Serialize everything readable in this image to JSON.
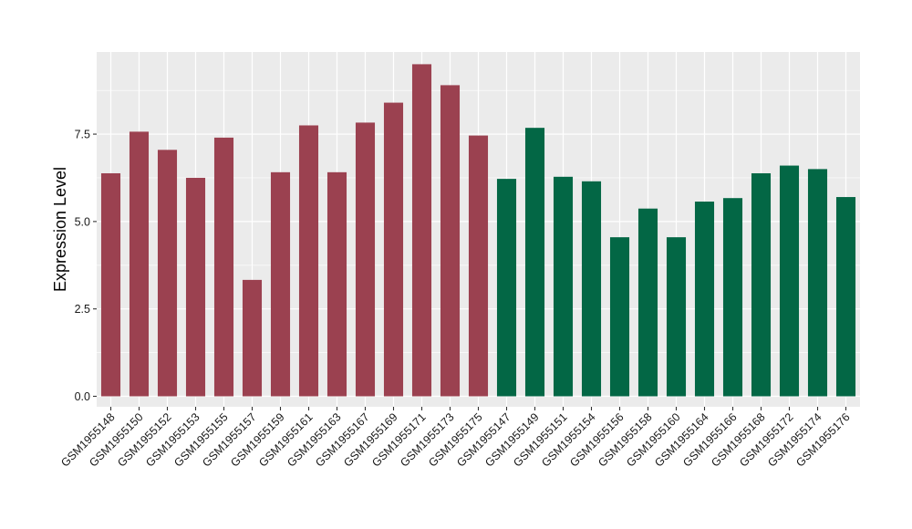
{
  "chart_data": {
    "type": "bar",
    "title": "",
    "xlabel": "",
    "ylabel": "Expression Level",
    "ylim": [
      -0.3,
      9.85
    ],
    "yticks": [
      0.0,
      2.5,
      5.0,
      7.5
    ],
    "ytick_labels": [
      "0.0",
      "2.5",
      "5.0",
      "7.5"
    ],
    "grid": true,
    "panel_background": "#ebebeb",
    "grid_color": "#ffffff",
    "categories": [
      "GSM1955148",
      "GSM1955150",
      "GSM1955152",
      "GSM1955153",
      "GSM1955155",
      "GSM1955157",
      "GSM1955159",
      "GSM1955161",
      "GSM1955163",
      "GSM1955167",
      "GSM1955169",
      "GSM1955171",
      "GSM1955173",
      "GSM1955175",
      "GSM1955147",
      "GSM1955149",
      "GSM1955151",
      "GSM1955154",
      "GSM1955156",
      "GSM1955158",
      "GSM1955160",
      "GSM1955164",
      "GSM1955166",
      "GSM1955168",
      "GSM1955172",
      "GSM1955174",
      "GSM1955176"
    ],
    "values": [
      6.38,
      7.57,
      7.05,
      6.25,
      7.4,
      3.33,
      6.41,
      7.75,
      6.41,
      7.83,
      8.4,
      9.5,
      8.9,
      7.46,
      6.22,
      7.68,
      6.28,
      6.15,
      4.55,
      5.37,
      4.55,
      5.57,
      5.67,
      6.38,
      6.6,
      6.5,
      5.7
    ],
    "groups": [
      0,
      0,
      0,
      0,
      0,
      0,
      0,
      0,
      0,
      0,
      0,
      0,
      0,
      0,
      1,
      1,
      1,
      1,
      1,
      1,
      1,
      1,
      1,
      1,
      1,
      1,
      1
    ],
    "colors": [
      "#9b4150",
      "#036745"
    ]
  }
}
